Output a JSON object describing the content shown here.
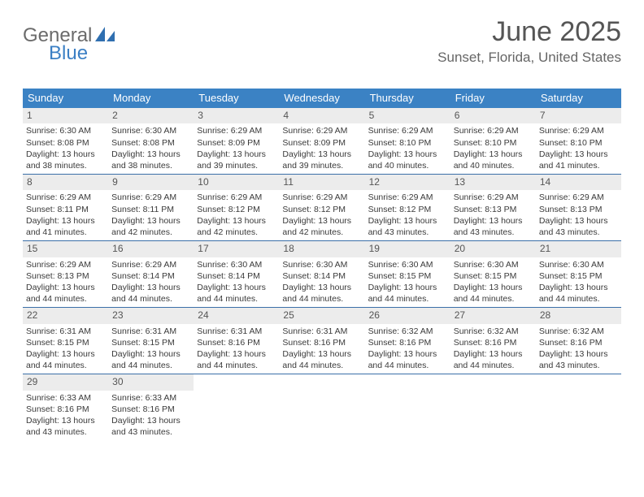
{
  "logo": {
    "text_general": "General",
    "text_blue": "Blue",
    "shape_color": "#2f6fb0"
  },
  "title": "June 2025",
  "subtitle": "Sunset, Florida, United States",
  "colors": {
    "header_bg": "#3b82c4",
    "header_text": "#ffffff",
    "daynum_bg": "#ececec",
    "row_border": "#3b6fa8"
  },
  "days_of_week": [
    "Sunday",
    "Monday",
    "Tuesday",
    "Wednesday",
    "Thursday",
    "Friday",
    "Saturday"
  ],
  "weeks": [
    [
      {
        "n": "1",
        "sunrise": "Sunrise: 6:30 AM",
        "sunset": "Sunset: 8:08 PM",
        "daylight": "Daylight: 13 hours and 38 minutes."
      },
      {
        "n": "2",
        "sunrise": "Sunrise: 6:30 AM",
        "sunset": "Sunset: 8:08 PM",
        "daylight": "Daylight: 13 hours and 38 minutes."
      },
      {
        "n": "3",
        "sunrise": "Sunrise: 6:29 AM",
        "sunset": "Sunset: 8:09 PM",
        "daylight": "Daylight: 13 hours and 39 minutes."
      },
      {
        "n": "4",
        "sunrise": "Sunrise: 6:29 AM",
        "sunset": "Sunset: 8:09 PM",
        "daylight": "Daylight: 13 hours and 39 minutes."
      },
      {
        "n": "5",
        "sunrise": "Sunrise: 6:29 AM",
        "sunset": "Sunset: 8:10 PM",
        "daylight": "Daylight: 13 hours and 40 minutes."
      },
      {
        "n": "6",
        "sunrise": "Sunrise: 6:29 AM",
        "sunset": "Sunset: 8:10 PM",
        "daylight": "Daylight: 13 hours and 40 minutes."
      },
      {
        "n": "7",
        "sunrise": "Sunrise: 6:29 AM",
        "sunset": "Sunset: 8:10 PM",
        "daylight": "Daylight: 13 hours and 41 minutes."
      }
    ],
    [
      {
        "n": "8",
        "sunrise": "Sunrise: 6:29 AM",
        "sunset": "Sunset: 8:11 PM",
        "daylight": "Daylight: 13 hours and 41 minutes."
      },
      {
        "n": "9",
        "sunrise": "Sunrise: 6:29 AM",
        "sunset": "Sunset: 8:11 PM",
        "daylight": "Daylight: 13 hours and 42 minutes."
      },
      {
        "n": "10",
        "sunrise": "Sunrise: 6:29 AM",
        "sunset": "Sunset: 8:12 PM",
        "daylight": "Daylight: 13 hours and 42 minutes."
      },
      {
        "n": "11",
        "sunrise": "Sunrise: 6:29 AM",
        "sunset": "Sunset: 8:12 PM",
        "daylight": "Daylight: 13 hours and 42 minutes."
      },
      {
        "n": "12",
        "sunrise": "Sunrise: 6:29 AM",
        "sunset": "Sunset: 8:12 PM",
        "daylight": "Daylight: 13 hours and 43 minutes."
      },
      {
        "n": "13",
        "sunrise": "Sunrise: 6:29 AM",
        "sunset": "Sunset: 8:13 PM",
        "daylight": "Daylight: 13 hours and 43 minutes."
      },
      {
        "n": "14",
        "sunrise": "Sunrise: 6:29 AM",
        "sunset": "Sunset: 8:13 PM",
        "daylight": "Daylight: 13 hours and 43 minutes."
      }
    ],
    [
      {
        "n": "15",
        "sunrise": "Sunrise: 6:29 AM",
        "sunset": "Sunset: 8:13 PM",
        "daylight": "Daylight: 13 hours and 44 minutes."
      },
      {
        "n": "16",
        "sunrise": "Sunrise: 6:29 AM",
        "sunset": "Sunset: 8:14 PM",
        "daylight": "Daylight: 13 hours and 44 minutes."
      },
      {
        "n": "17",
        "sunrise": "Sunrise: 6:30 AM",
        "sunset": "Sunset: 8:14 PM",
        "daylight": "Daylight: 13 hours and 44 minutes."
      },
      {
        "n": "18",
        "sunrise": "Sunrise: 6:30 AM",
        "sunset": "Sunset: 8:14 PM",
        "daylight": "Daylight: 13 hours and 44 minutes."
      },
      {
        "n": "19",
        "sunrise": "Sunrise: 6:30 AM",
        "sunset": "Sunset: 8:15 PM",
        "daylight": "Daylight: 13 hours and 44 minutes."
      },
      {
        "n": "20",
        "sunrise": "Sunrise: 6:30 AM",
        "sunset": "Sunset: 8:15 PM",
        "daylight": "Daylight: 13 hours and 44 minutes."
      },
      {
        "n": "21",
        "sunrise": "Sunrise: 6:30 AM",
        "sunset": "Sunset: 8:15 PM",
        "daylight": "Daylight: 13 hours and 44 minutes."
      }
    ],
    [
      {
        "n": "22",
        "sunrise": "Sunrise: 6:31 AM",
        "sunset": "Sunset: 8:15 PM",
        "daylight": "Daylight: 13 hours and 44 minutes."
      },
      {
        "n": "23",
        "sunrise": "Sunrise: 6:31 AM",
        "sunset": "Sunset: 8:15 PM",
        "daylight": "Daylight: 13 hours and 44 minutes."
      },
      {
        "n": "24",
        "sunrise": "Sunrise: 6:31 AM",
        "sunset": "Sunset: 8:16 PM",
        "daylight": "Daylight: 13 hours and 44 minutes."
      },
      {
        "n": "25",
        "sunrise": "Sunrise: 6:31 AM",
        "sunset": "Sunset: 8:16 PM",
        "daylight": "Daylight: 13 hours and 44 minutes."
      },
      {
        "n": "26",
        "sunrise": "Sunrise: 6:32 AM",
        "sunset": "Sunset: 8:16 PM",
        "daylight": "Daylight: 13 hours and 44 minutes."
      },
      {
        "n": "27",
        "sunrise": "Sunrise: 6:32 AM",
        "sunset": "Sunset: 8:16 PM",
        "daylight": "Daylight: 13 hours and 44 minutes."
      },
      {
        "n": "28",
        "sunrise": "Sunrise: 6:32 AM",
        "sunset": "Sunset: 8:16 PM",
        "daylight": "Daylight: 13 hours and 43 minutes."
      }
    ],
    [
      {
        "n": "29",
        "sunrise": "Sunrise: 6:33 AM",
        "sunset": "Sunset: 8:16 PM",
        "daylight": "Daylight: 13 hours and 43 minutes."
      },
      {
        "n": "30",
        "sunrise": "Sunrise: 6:33 AM",
        "sunset": "Sunset: 8:16 PM",
        "daylight": "Daylight: 13 hours and 43 minutes."
      },
      {
        "empty": true
      },
      {
        "empty": true
      },
      {
        "empty": true
      },
      {
        "empty": true
      },
      {
        "empty": true
      }
    ]
  ]
}
